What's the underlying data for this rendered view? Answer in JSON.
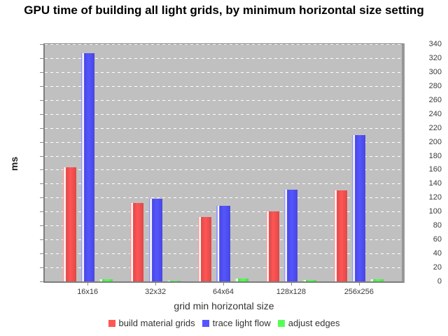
{
  "chart_data": {
    "type": "bar",
    "title": "GPU time of building all light grids, by minimum horizontal size setting",
    "categories": [
      "16x16",
      "32x32",
      "64x64",
      "128x128",
      "256x256"
    ],
    "series": [
      {
        "name": "build material grids",
        "color": "#ff5555",
        "color_light": "#ff9a9a",
        "color_dark": "#e04848",
        "values": [
          163,
          112,
          92,
          100,
          130
        ]
      },
      {
        "name": "trace light flow",
        "color": "#5555ff",
        "color_light": "#9a9aff",
        "color_dark": "#4848e0",
        "values": [
          327,
          118,
          108,
          131,
          210
        ]
      },
      {
        "name": "adjust edges",
        "color": "#55ff55",
        "color_light": "#9aff9a",
        "color_dark": "#48e048",
        "values": [
          3,
          1,
          4,
          2,
          3
        ]
      }
    ],
    "xlabel": "grid min horizontal size",
    "ylabel": "ms",
    "ylim": [
      0,
      340
    ],
    "ytick_step": 20,
    "grid": true,
    "gridline_color": "#ffffff",
    "plot_bg": "#c0c0c0",
    "legend_position": "bottom"
  }
}
